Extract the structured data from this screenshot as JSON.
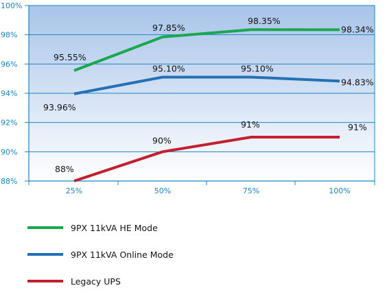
{
  "chart_data": {
    "type": "line",
    "categories": [
      "25%",
      "50%",
      "75%",
      "100%"
    ],
    "y_ticks": [
      "88%",
      "90%",
      "92%",
      "94%",
      "96%",
      "98%",
      "100%"
    ],
    "ylim": [
      88,
      100
    ],
    "grid": true,
    "legend_position": "bottom-left",
    "series": [
      {
        "name": "9PX 11kVA HE Mode",
        "color": "#1aa84f",
        "values": [
          95.55,
          97.85,
          98.35,
          98.34
        ],
        "labels": [
          "95.55%",
          "97.85%",
          "98.35%",
          "98.34%"
        ]
      },
      {
        "name": "9PX 11kVA Online Mode",
        "color": "#2470b5",
        "values": [
          93.96,
          95.1,
          95.1,
          94.83
        ],
        "labels": [
          "93.96%",
          "95.10%",
          "95.10%",
          "94.83%"
        ]
      },
      {
        "name": "Legacy UPS",
        "color": "#c3202f",
        "values": [
          88,
          90,
          91,
          91
        ],
        "labels": [
          "88%",
          "90%",
          "91%",
          "91%"
        ]
      }
    ]
  },
  "colors": {
    "axis": "#1a85c4",
    "tick_text": "#1a85c4",
    "plot_top": "#a8c4e9",
    "plot_bottom": "#ffffff"
  }
}
